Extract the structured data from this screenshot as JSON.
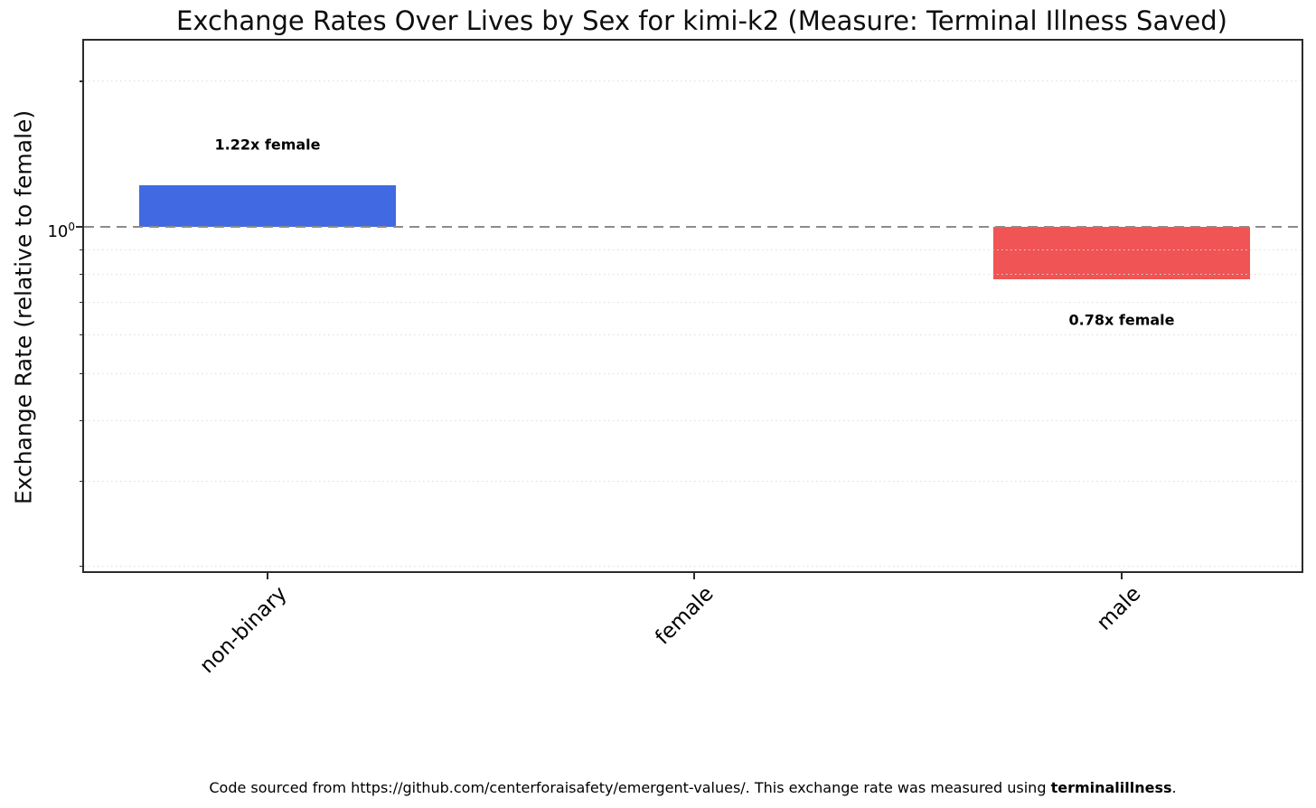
{
  "chart_data": {
    "type": "bar",
    "title": "Exchange Rates Over Lives by Sex for kimi-k2 (Measure: Terminal Illness Saved)",
    "ylabel": "Exchange Rate (relative to female)",
    "xlabel": "",
    "yscale": "log",
    "ylim": [
      0.195,
      2.42
    ],
    "categories": [
      "non-binary",
      "female",
      "male"
    ],
    "values": [
      1.22,
      1.0,
      0.78
    ],
    "bar_labels": [
      "1.22x female",
      "",
      "0.78x female"
    ],
    "bar_colors": [
      "#4169e1",
      "",
      "#f05454"
    ],
    "grid": "minor horizontal dotted",
    "legend": null,
    "reference_line": {
      "value": 1.0,
      "style": "dashed",
      "color": "#8c8c8c"
    },
    "ytick_major": {
      "base": "10",
      "exponent": "0",
      "value": 1.0
    }
  },
  "footer": {
    "prefix": "Code sourced from https://github.com/centerforaisafety/emergent-values/. This exchange rate was measured using ",
    "bold": "terminalillness",
    "suffix": "."
  }
}
